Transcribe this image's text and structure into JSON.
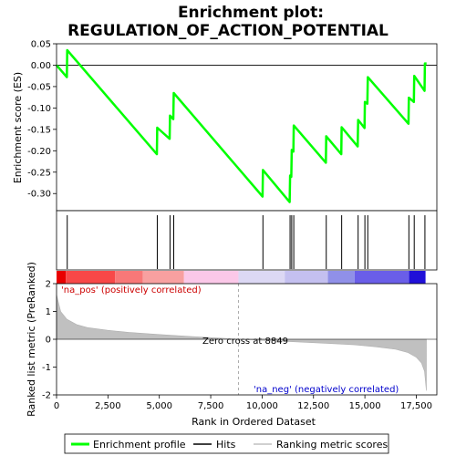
{
  "chart_data": {
    "type": "line",
    "title_line1": "Enrichment plot:",
    "title_line2": "REGULATION_OF_ACTION_POTENTIAL",
    "es_panel": {
      "ylabel": "Enrichment score (ES)",
      "ylim": [
        -0.34,
        0.05
      ],
      "yticks": [
        0.05,
        0.0,
        -0.05,
        -0.1,
        -0.15,
        -0.2,
        -0.25,
        -0.3
      ],
      "ytick_labels": [
        "0.05",
        "0.00",
        "-0.05",
        "-0.10",
        "-0.15",
        "-0.20",
        "-0.25",
        "-0.30"
      ],
      "color": "#00ff00",
      "points": [
        [
          0,
          0.0
        ],
        [
          500,
          -0.028
        ],
        [
          520,
          0.035
        ],
        [
          4880,
          -0.208
        ],
        [
          4900,
          -0.146
        ],
        [
          5500,
          -0.172
        ],
        [
          5520,
          -0.118
        ],
        [
          5680,
          -0.126
        ],
        [
          5700,
          -0.065
        ],
        [
          10020,
          -0.307
        ],
        [
          10040,
          -0.245
        ],
        [
          11340,
          -0.32
        ],
        [
          11360,
          -0.258
        ],
        [
          11420,
          -0.261
        ],
        [
          11440,
          -0.198
        ],
        [
          11520,
          -0.202
        ],
        [
          11540,
          -0.141
        ],
        [
          13100,
          -0.228
        ],
        [
          13120,
          -0.166
        ],
        [
          13850,
          -0.208
        ],
        [
          13870,
          -0.145
        ],
        [
          14650,
          -0.19
        ],
        [
          14670,
          -0.128
        ],
        [
          14980,
          -0.147
        ],
        [
          15000,
          -0.086
        ],
        [
          15120,
          -0.09
        ],
        [
          15140,
          -0.028
        ],
        [
          17120,
          -0.137
        ],
        [
          17140,
          -0.076
        ],
        [
          17380,
          -0.086
        ],
        [
          17400,
          -0.025
        ],
        [
          17900,
          -0.06
        ],
        [
          17920,
          0.004
        ],
        [
          18000,
          0.004
        ]
      ]
    },
    "hits": [
      520,
      4900,
      5520,
      5700,
      10040,
      11360,
      11440,
      11540,
      13120,
      13870,
      14670,
      15000,
      15140,
      17140,
      17400,
      17920
    ],
    "heat_bar": {
      "segments": [
        {
          "start": 0,
          "end": 450,
          "color": "#e80000"
        },
        {
          "start": 450,
          "end": 2850,
          "color": "#f84848"
        },
        {
          "start": 2850,
          "end": 4200,
          "color": "#f87878"
        },
        {
          "start": 4200,
          "end": 6200,
          "color": "#f8a0a0"
        },
        {
          "start": 6200,
          "end": 8849,
          "color": "#fbc8e8"
        },
        {
          "start": 8849,
          "end": 11100,
          "color": "#dcd8f4"
        },
        {
          "start": 11100,
          "end": 13200,
          "color": "#c4c0f0"
        },
        {
          "start": 13200,
          "end": 14500,
          "color": "#9090e8"
        },
        {
          "start": 14500,
          "end": 17150,
          "color": "#6a5ee8"
        },
        {
          "start": 17150,
          "end": 17950,
          "color": "#2010d8"
        }
      ]
    },
    "metric_panel": {
      "ylabel": "Ranked list metric (PreRanked)",
      "ylim": [
        -2,
        2
      ],
      "yticks": [
        2,
        1,
        0,
        -1,
        -2
      ],
      "ytick_labels": [
        "2",
        "1",
        "0",
        "-1",
        "-2"
      ],
      "color": "#c0c0c0",
      "curve": [
        [
          0,
          1.6
        ],
        [
          200,
          1.0
        ],
        [
          500,
          0.72
        ],
        [
          1000,
          0.52
        ],
        [
          1500,
          0.42
        ],
        [
          2500,
          0.32
        ],
        [
          3500,
          0.25
        ],
        [
          5000,
          0.17
        ],
        [
          6500,
          0.1
        ],
        [
          8000,
          0.04
        ],
        [
          8849,
          0.0
        ],
        [
          10000,
          -0.04
        ],
        [
          11500,
          -0.09
        ],
        [
          13000,
          -0.14
        ],
        [
          14500,
          -0.2
        ],
        [
          15500,
          -0.27
        ],
        [
          16500,
          -0.36
        ],
        [
          17100,
          -0.48
        ],
        [
          17500,
          -0.65
        ],
        [
          17750,
          -0.85
        ],
        [
          17900,
          -1.15
        ],
        [
          17990,
          -1.85
        ]
      ],
      "zero_cross_label": "Zero cross at 8849",
      "zero_cross": 8849,
      "pos_label": "'na_pos' (positively correlated)",
      "neg_label": "'na_neg' (negatively correlated)"
    },
    "xaxis": {
      "label": "Rank in Ordered Dataset",
      "xlim": [
        0,
        18500
      ],
      "ticks": [
        0,
        2500,
        5000,
        7500,
        10000,
        12500,
        15000,
        17500
      ],
      "tick_labels": [
        "0",
        "2,500",
        "5,000",
        "7,500",
        "10,000",
        "12,500",
        "15,000",
        "17,500"
      ]
    },
    "legend": {
      "items": [
        {
          "label": "Enrichment profile",
          "color": "#00ff00"
        },
        {
          "label": "Hits",
          "color": "#000000"
        },
        {
          "label": "Ranking metric scores",
          "color": "#c0c0c0"
        }
      ]
    },
    "colors": {
      "pos_text": "#cc0000",
      "neg_text": "#0000cc",
      "frame": "#000000",
      "grid_zero": "#000000",
      "zero_cross_line": "#999999"
    }
  }
}
